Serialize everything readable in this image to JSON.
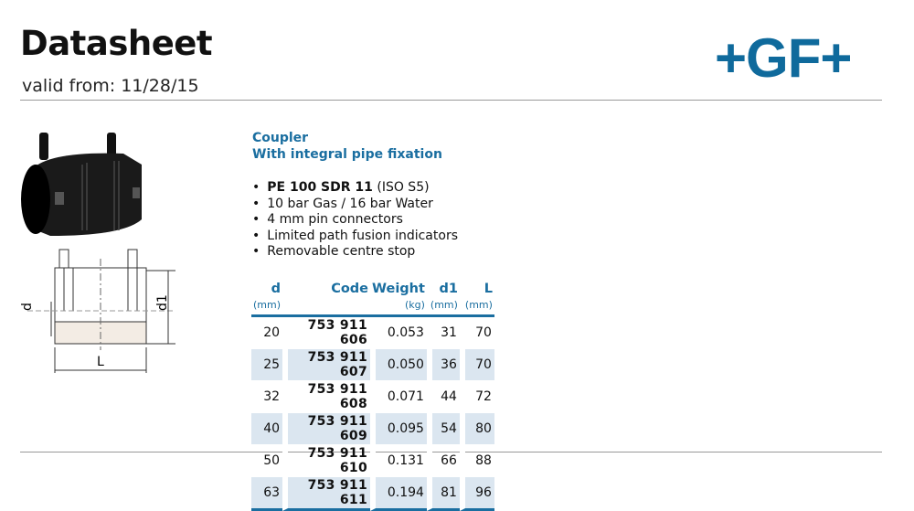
{
  "header": {
    "title": "Datasheet",
    "valid_from": "valid from: 11/28/15",
    "logo": "+GF+",
    "brand_color": "#0f6a9c"
  },
  "product": {
    "name": "Coupler",
    "subtitle": "With integral pipe fixation",
    "features": [
      {
        "bold": "PE 100 SDR 11",
        "rest": " (ISO S5)"
      },
      {
        "bold": "",
        "rest": "10 bar Gas / 16 bar Water"
      },
      {
        "bold": "",
        "rest": "4 mm pin connectors"
      },
      {
        "bold": "",
        "rest": "Limited path fusion indicators"
      },
      {
        "bold": "",
        "rest": "Removable centre stop"
      }
    ]
  },
  "drawing": {
    "labels": {
      "d": "d",
      "d1": "d1",
      "L": "L"
    }
  },
  "table": {
    "headers": [
      "d",
      "Code",
      "Weight",
      "d1",
      "L"
    ],
    "units": [
      "(mm)",
      "",
      "(kg)",
      "(mm)",
      "(mm)"
    ],
    "rows": [
      [
        "20",
        "753 911 606",
        "0.053",
        "31",
        "70"
      ],
      [
        "25",
        "753 911 607",
        "0.050",
        "36",
        "70"
      ],
      [
        "32",
        "753 911 608",
        "0.071",
        "44",
        "72"
      ],
      [
        "40",
        "753 911 609",
        "0.095",
        "54",
        "80"
      ],
      [
        "50",
        "753 911 610",
        "0.131",
        "66",
        "88"
      ],
      [
        "63",
        "753 911 611",
        "0.194",
        "81",
        "96"
      ]
    ]
  }
}
